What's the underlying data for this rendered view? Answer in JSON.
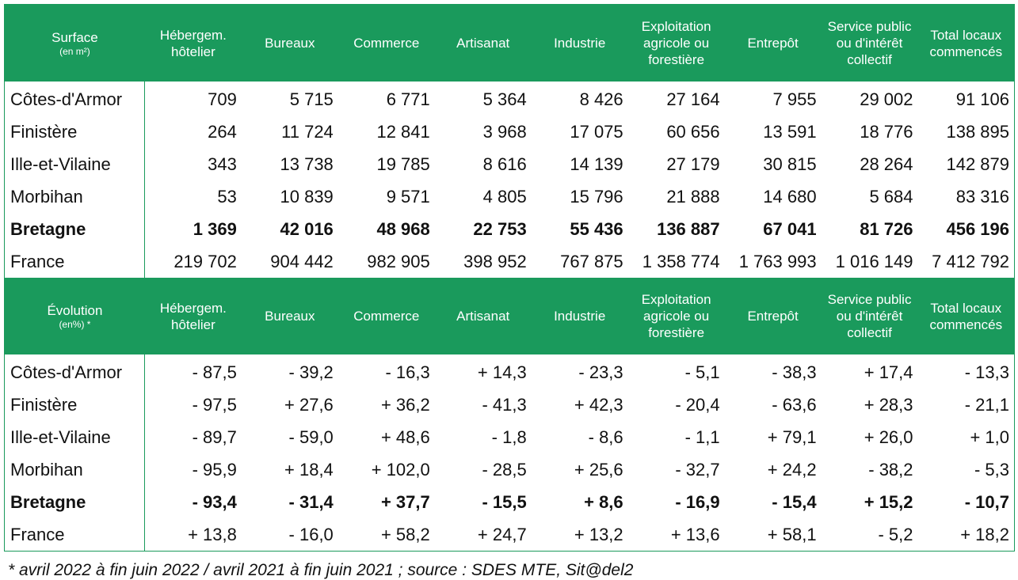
{
  "surface": {
    "header": {
      "title": "Surface",
      "unit": "(en m²)",
      "columns": [
        "Hébergem. hôtelier",
        "Bureaux",
        "Commerce",
        "Artisanat",
        "Industrie",
        "Exploitation agricole ou forestière",
        "Entrepôt",
        "Service public ou d'intérêt collectif",
        "Total locaux commencés"
      ]
    },
    "rows": [
      {
        "label": "Côtes-d'Armor",
        "values": [
          "709",
          "5 715",
          "6 771",
          "5 364",
          "8 426",
          "27 164",
          "7 955",
          "29 002",
          "91 106"
        ]
      },
      {
        "label": "Finistère",
        "values": [
          "264",
          "11 724",
          "12 841",
          "3 968",
          "17 075",
          "60 656",
          "13 591",
          "18 776",
          "138 895"
        ]
      },
      {
        "label": "Ille-et-Vilaine",
        "values": [
          "343",
          "13 738",
          "19 785",
          "8 616",
          "14 139",
          "27 179",
          "30 815",
          "28 264",
          "142 879"
        ]
      },
      {
        "label": "Morbihan",
        "values": [
          "53",
          "10 839",
          "9 571",
          "4 805",
          "15 796",
          "21 888",
          "14 680",
          "5 684",
          "83 316"
        ]
      },
      {
        "label": "Bretagne",
        "values": [
          "1 369",
          "42 016",
          "48 968",
          "22 753",
          "55 436",
          "136 887",
          "67 041",
          "81 726",
          "456 196"
        ]
      },
      {
        "label": "France",
        "values": [
          "219 702",
          "904 442",
          "982 905",
          "398 952",
          "767 875",
          "1 358 774",
          "1 763 993",
          "1 016 149",
          "7 412 792"
        ]
      }
    ]
  },
  "evolution": {
    "header": {
      "title": "Évolution",
      "unit": "(en%) *",
      "columns": [
        "Hébergem. hôtelier",
        "Bureaux",
        "Commerce",
        "Artisanat",
        "Industrie",
        "Exploitation agricole ou forestière",
        "Entrepôt",
        "Service public ou d'intérêt collectif",
        "Total locaux commencés"
      ]
    },
    "rows": [
      {
        "label": "Côtes-d'Armor",
        "values": [
          "- 87,5",
          "- 39,2",
          "- 16,3",
          "+ 14,3",
          "- 23,3",
          "- 5,1",
          "- 38,3",
          "+ 17,4",
          "- 13,3"
        ]
      },
      {
        "label": "Finistère",
        "values": [
          "- 97,5",
          "+ 27,6",
          "+ 36,2",
          "- 41,3",
          "+ 42,3",
          "- 20,4",
          "- 63,6",
          "+ 28,3",
          "- 21,1"
        ]
      },
      {
        "label": "Ille-et-Vilaine",
        "values": [
          "- 89,7",
          "- 59,0",
          "+ 48,6",
          "- 1,8",
          "- 8,6",
          "- 1,1",
          "+ 79,1",
          "+ 26,0",
          "+ 1,0"
        ]
      },
      {
        "label": "Morbihan",
        "values": [
          "- 95,9",
          "+ 18,4",
          "+ 102,0",
          "- 28,5",
          "+ 25,6",
          "- 32,7",
          "+ 24,2",
          "- 38,2",
          "- 5,3"
        ]
      },
      {
        "label": "Bretagne",
        "values": [
          "- 93,4",
          "- 31,4",
          "+ 37,7",
          "- 15,5",
          "+ 8,6",
          "- 16,9",
          "- 15,4",
          "+ 15,2",
          "- 10,7"
        ]
      },
      {
        "label": "France",
        "values": [
          "+ 13,8",
          "- 16,0",
          "+ 58,2",
          "+ 24,7",
          "+ 13,2",
          "+ 13,6",
          "+ 58,1",
          "- 5,2",
          "+ 18,2"
        ]
      }
    ]
  },
  "footnote": "* avril 2022 à fin juin 2022 / avril 2021 à fin juin 2021 ; source : SDES MTE, Sit@del2",
  "colors": {
    "header_bg": "#1a9a5c",
    "header_text": "#ffffff"
  }
}
